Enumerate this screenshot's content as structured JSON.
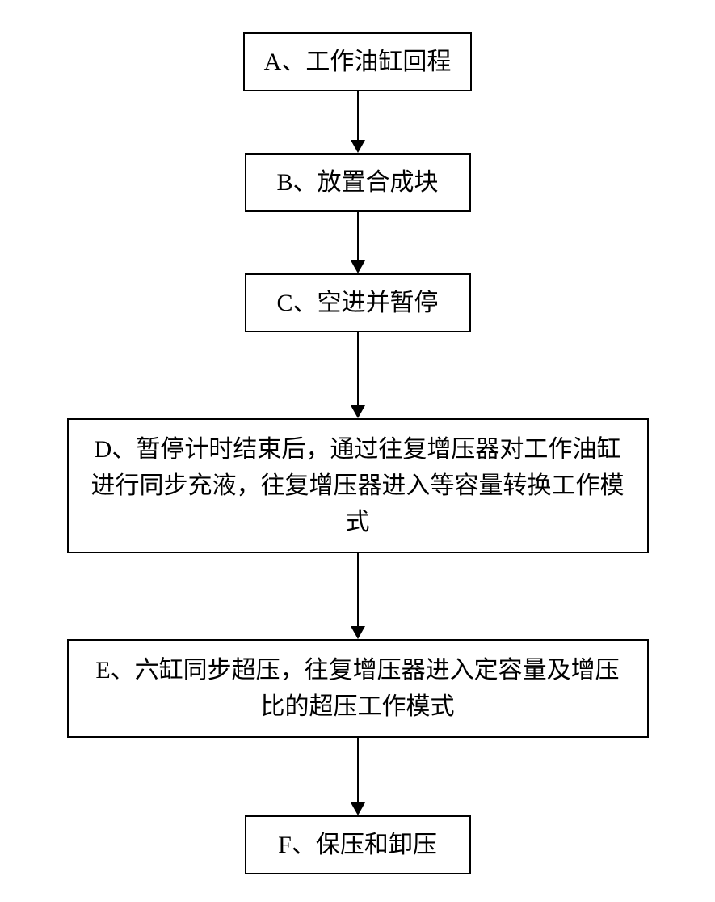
{
  "flowchart": {
    "steps": [
      {
        "label": "A、工作油缸回程",
        "size": "small",
        "arrow_length": 60
      },
      {
        "label": "B、放置合成块",
        "size": "small",
        "arrow_length": 60
      },
      {
        "label": "C、空进并暂停",
        "size": "small",
        "arrow_length": 90
      },
      {
        "label": "D、暂停计时结束后，通过往复增压器对工作油缸进行同步充液，往复增压器进入等容量转换工作模式",
        "size": "large",
        "arrow_length": 90
      },
      {
        "label": "E、六缸同步超压，往复增压器进入定容量及增压比的超压工作模式",
        "size": "large",
        "arrow_length": 80
      },
      {
        "label": "F、保压和卸压",
        "size": "small",
        "arrow_length": 0
      }
    ],
    "style": {
      "border_color": "#000000",
      "background_color": "#ffffff",
      "text_color": "#000000",
      "font_size": 30,
      "border_width": 2,
      "box_small_min_width": 280,
      "box_large_width": 720
    }
  }
}
